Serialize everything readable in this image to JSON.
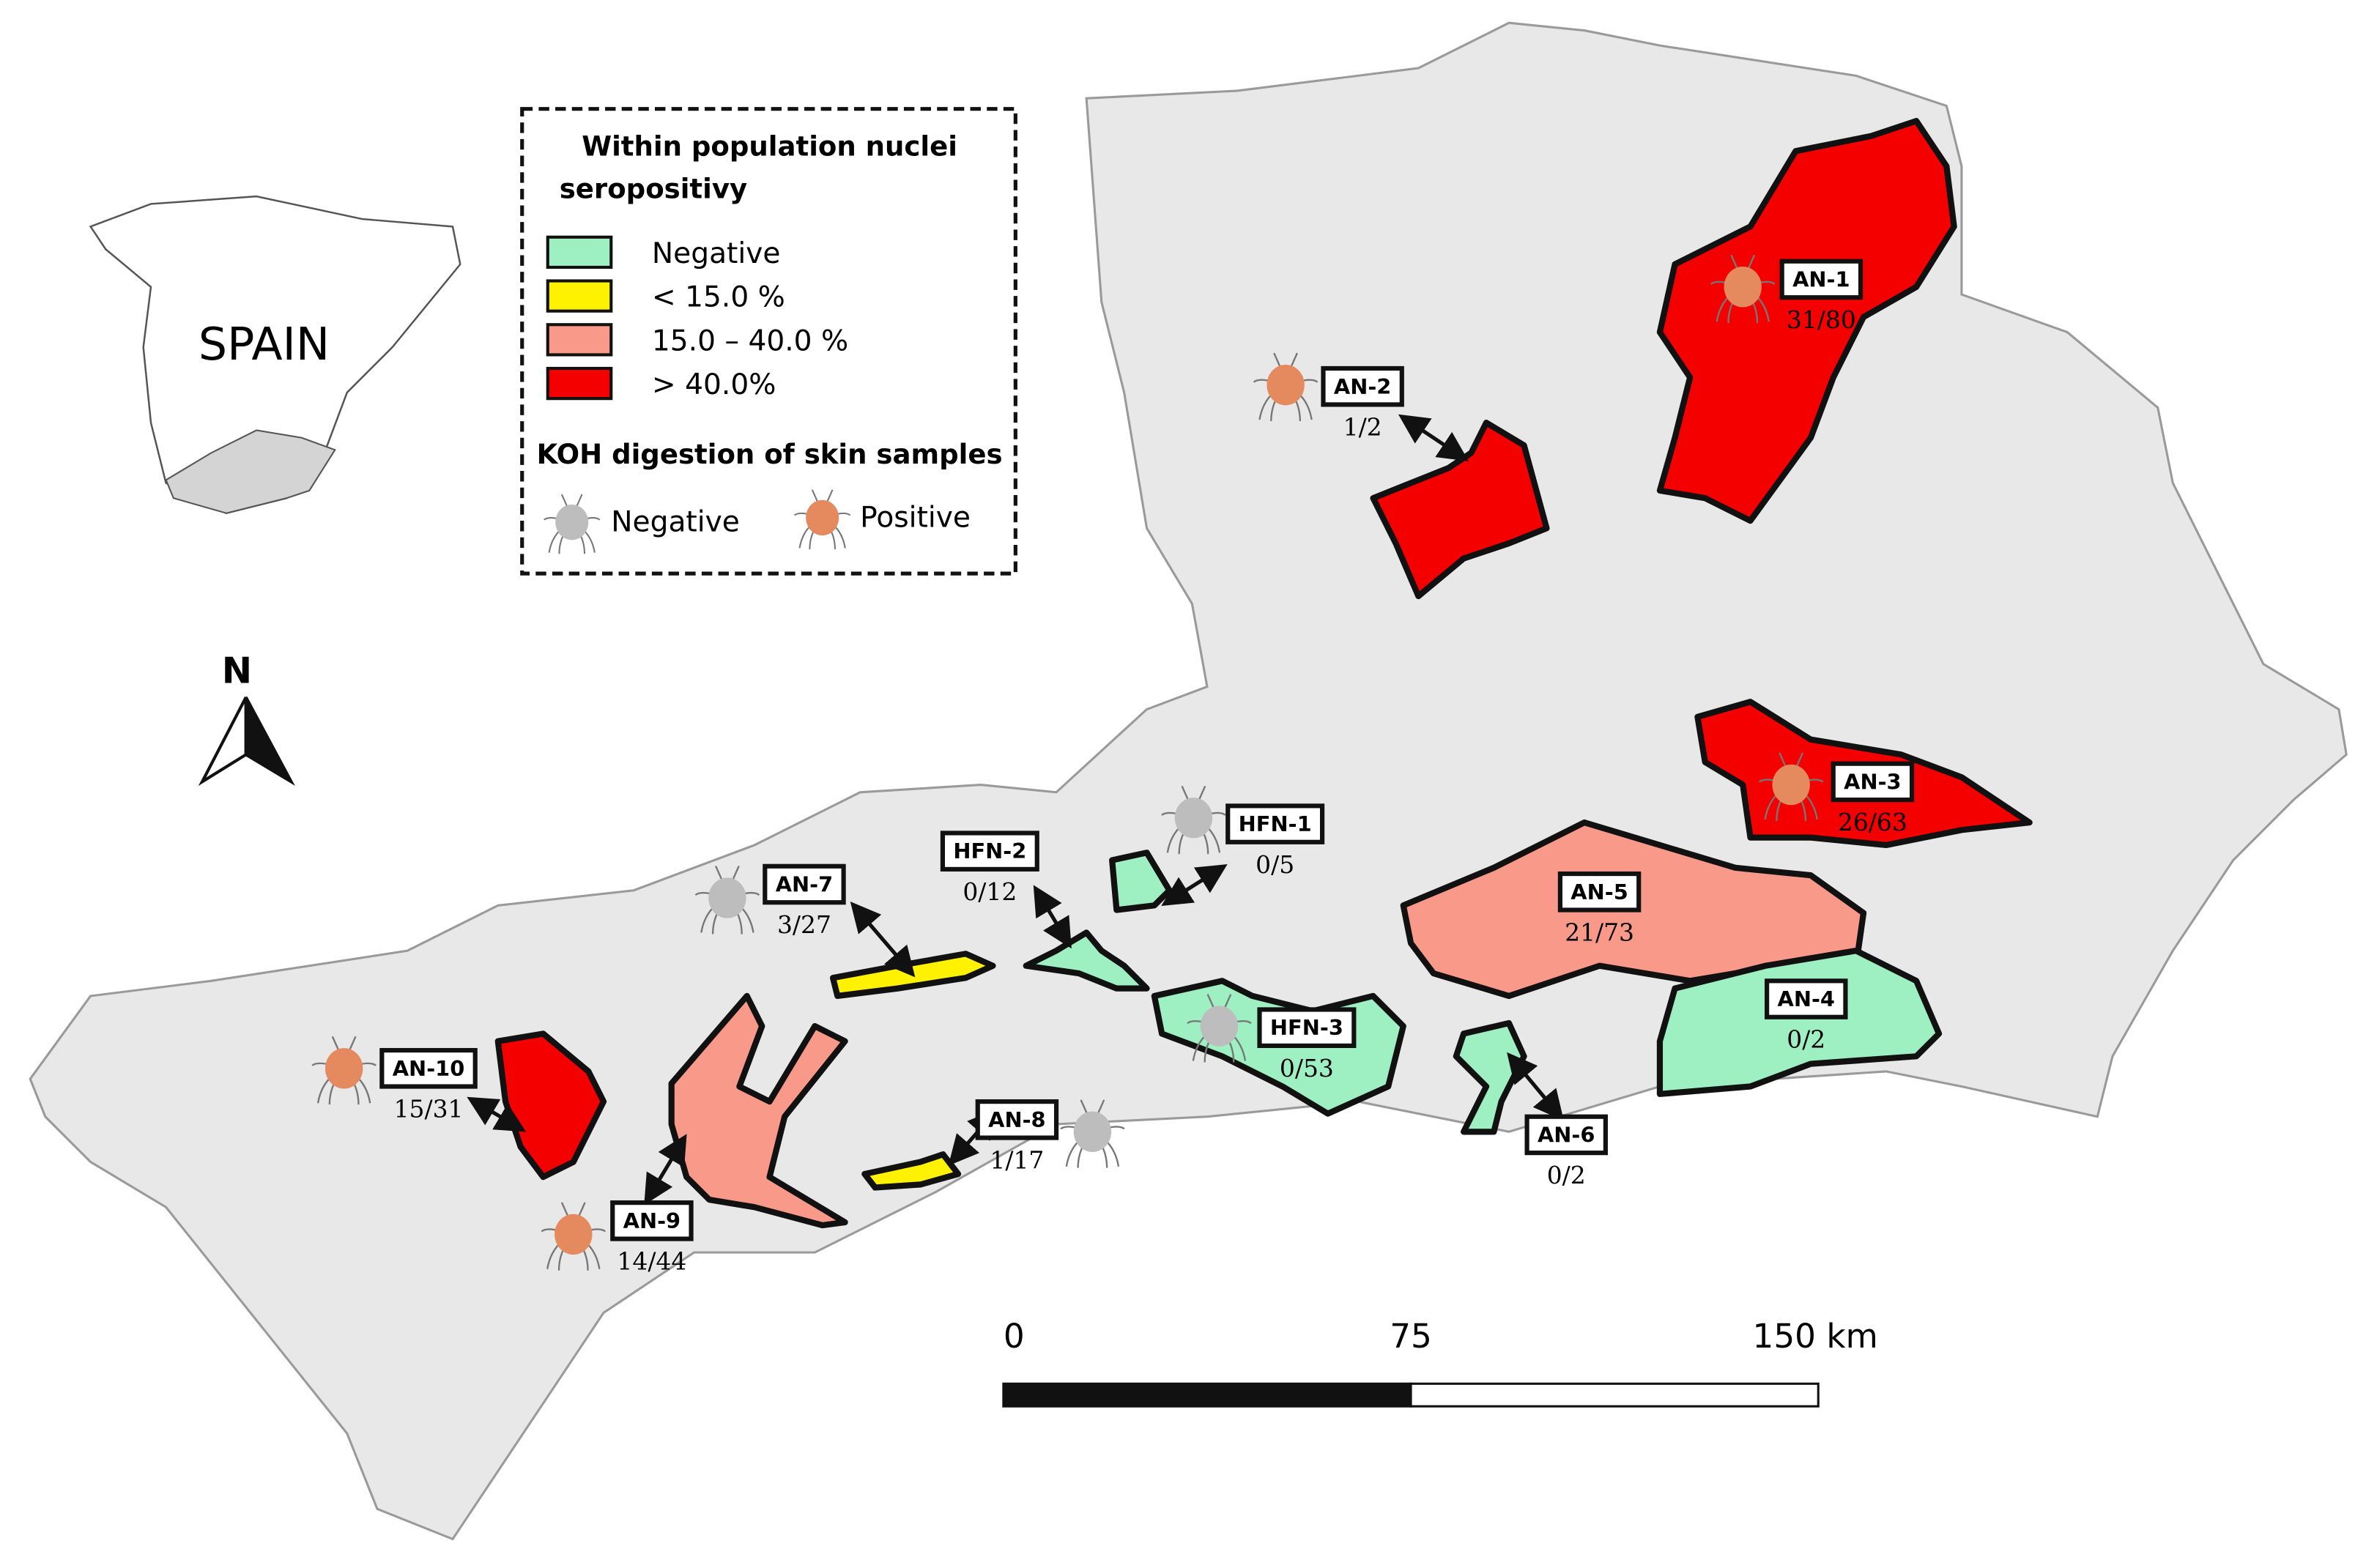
{
  "inset": {
    "label": "SPAIN"
  },
  "north": "N",
  "legend": {
    "title_lines": [
      "Within population nuclei",
      "seropositivy"
    ],
    "items": [
      "Negative",
      "< 15.0 %",
      "15.0 – 40.0 %",
      "> 40.0%"
    ],
    "koh_title": "KOH digestion of skin samples",
    "koh_items": [
      "Negative",
      "Positive"
    ]
  },
  "scale": {
    "labels": [
      "0",
      "75",
      "150 km"
    ]
  },
  "sites": [
    {
      "id": "AN-1",
      "ratio": "31/80"
    },
    {
      "id": "AN-2",
      "ratio": "1/2"
    },
    {
      "id": "AN-3",
      "ratio": "26/63"
    },
    {
      "id": "AN-4",
      "ratio": "0/2"
    },
    {
      "id": "AN-5",
      "ratio": "21/73"
    },
    {
      "id": "AN-6",
      "ratio": "0/2"
    },
    {
      "id": "HFN-1",
      "ratio": "0/5"
    },
    {
      "id": "HFN-2",
      "ratio": "0/12"
    },
    {
      "id": "HFN-3",
      "ratio": "0/53"
    },
    {
      "id": "AN-7",
      "ratio": "3/27"
    },
    {
      "id": "AN-8",
      "ratio": "1/17"
    },
    {
      "id": "AN-9",
      "ratio": "14/44"
    },
    {
      "id": "AN-10",
      "ratio": "15/31"
    }
  ]
}
